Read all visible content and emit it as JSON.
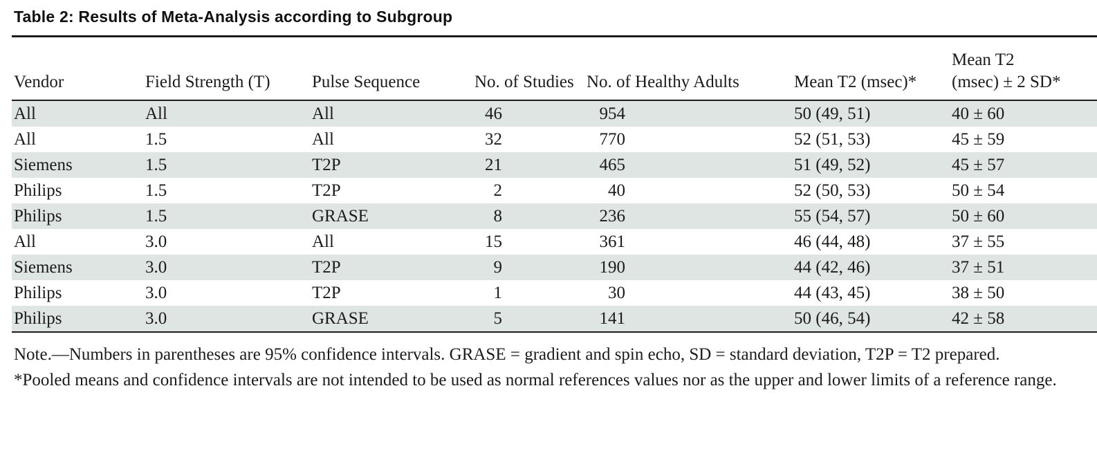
{
  "document": {
    "title": "Table 2: Results of Meta-Analysis according to Subgroup"
  },
  "table": {
    "columns": [
      {
        "label": "Vendor"
      },
      {
        "label": "Field Strength (T)"
      },
      {
        "label": "Pulse Sequence"
      },
      {
        "label": "No. of Studies"
      },
      {
        "label": "No. of Healthy Adults"
      },
      {
        "label": "Mean T2 (msec)*"
      },
      {
        "label": "Mean T2 (msec) ± 2 SD*",
        "line1": "Mean T2",
        "line2": "(msec) ± 2 SD*"
      }
    ],
    "rows": [
      [
        "All",
        "All",
        "All",
        "46",
        "954",
        "50 (49, 51)",
        "40 ± 60"
      ],
      [
        "All",
        "1.5",
        "All",
        "32",
        "770",
        "52 (51, 53)",
        "45 ± 59"
      ],
      [
        "Siemens",
        "1.5",
        "T2P",
        "21",
        "465",
        "51 (49, 52)",
        "45 ± 57"
      ],
      [
        "Philips",
        "1.5",
        "T2P",
        "2",
        "40",
        "52 (50, 53)",
        "50 ± 54"
      ],
      [
        "Philips",
        "1.5",
        "GRASE",
        "8",
        "236",
        "55 (54, 57)",
        "50 ± 60"
      ],
      [
        "All",
        "3.0",
        "All",
        "15",
        "361",
        "46 (44, 48)",
        "37 ± 55"
      ],
      [
        "Siemens",
        "3.0",
        "T2P",
        "9",
        "190",
        "44 (42, 46)",
        "37 ± 51"
      ],
      [
        "Philips",
        "3.0",
        "T2P",
        "1",
        "30",
        "44 (43, 45)",
        "38 ± 50"
      ],
      [
        "Philips",
        "3.0",
        "GRASE",
        "5",
        "141",
        "50 (46, 54)",
        "42 ± 58"
      ]
    ]
  },
  "notes": {
    "note": "Note.—Numbers in parentheses are 95% confidence intervals. GRASE = gradient and spin echo, SD = standard deviation, T2P = T2 prepared.",
    "footnote": "*Pooled means and confidence intervals are not intended to be used as normal references values nor as the upper and lower limits of a reference range."
  },
  "colors": {
    "row_shading": "#dee5e2",
    "rule": "#1c1c1c",
    "text": "#1b1b1b"
  }
}
